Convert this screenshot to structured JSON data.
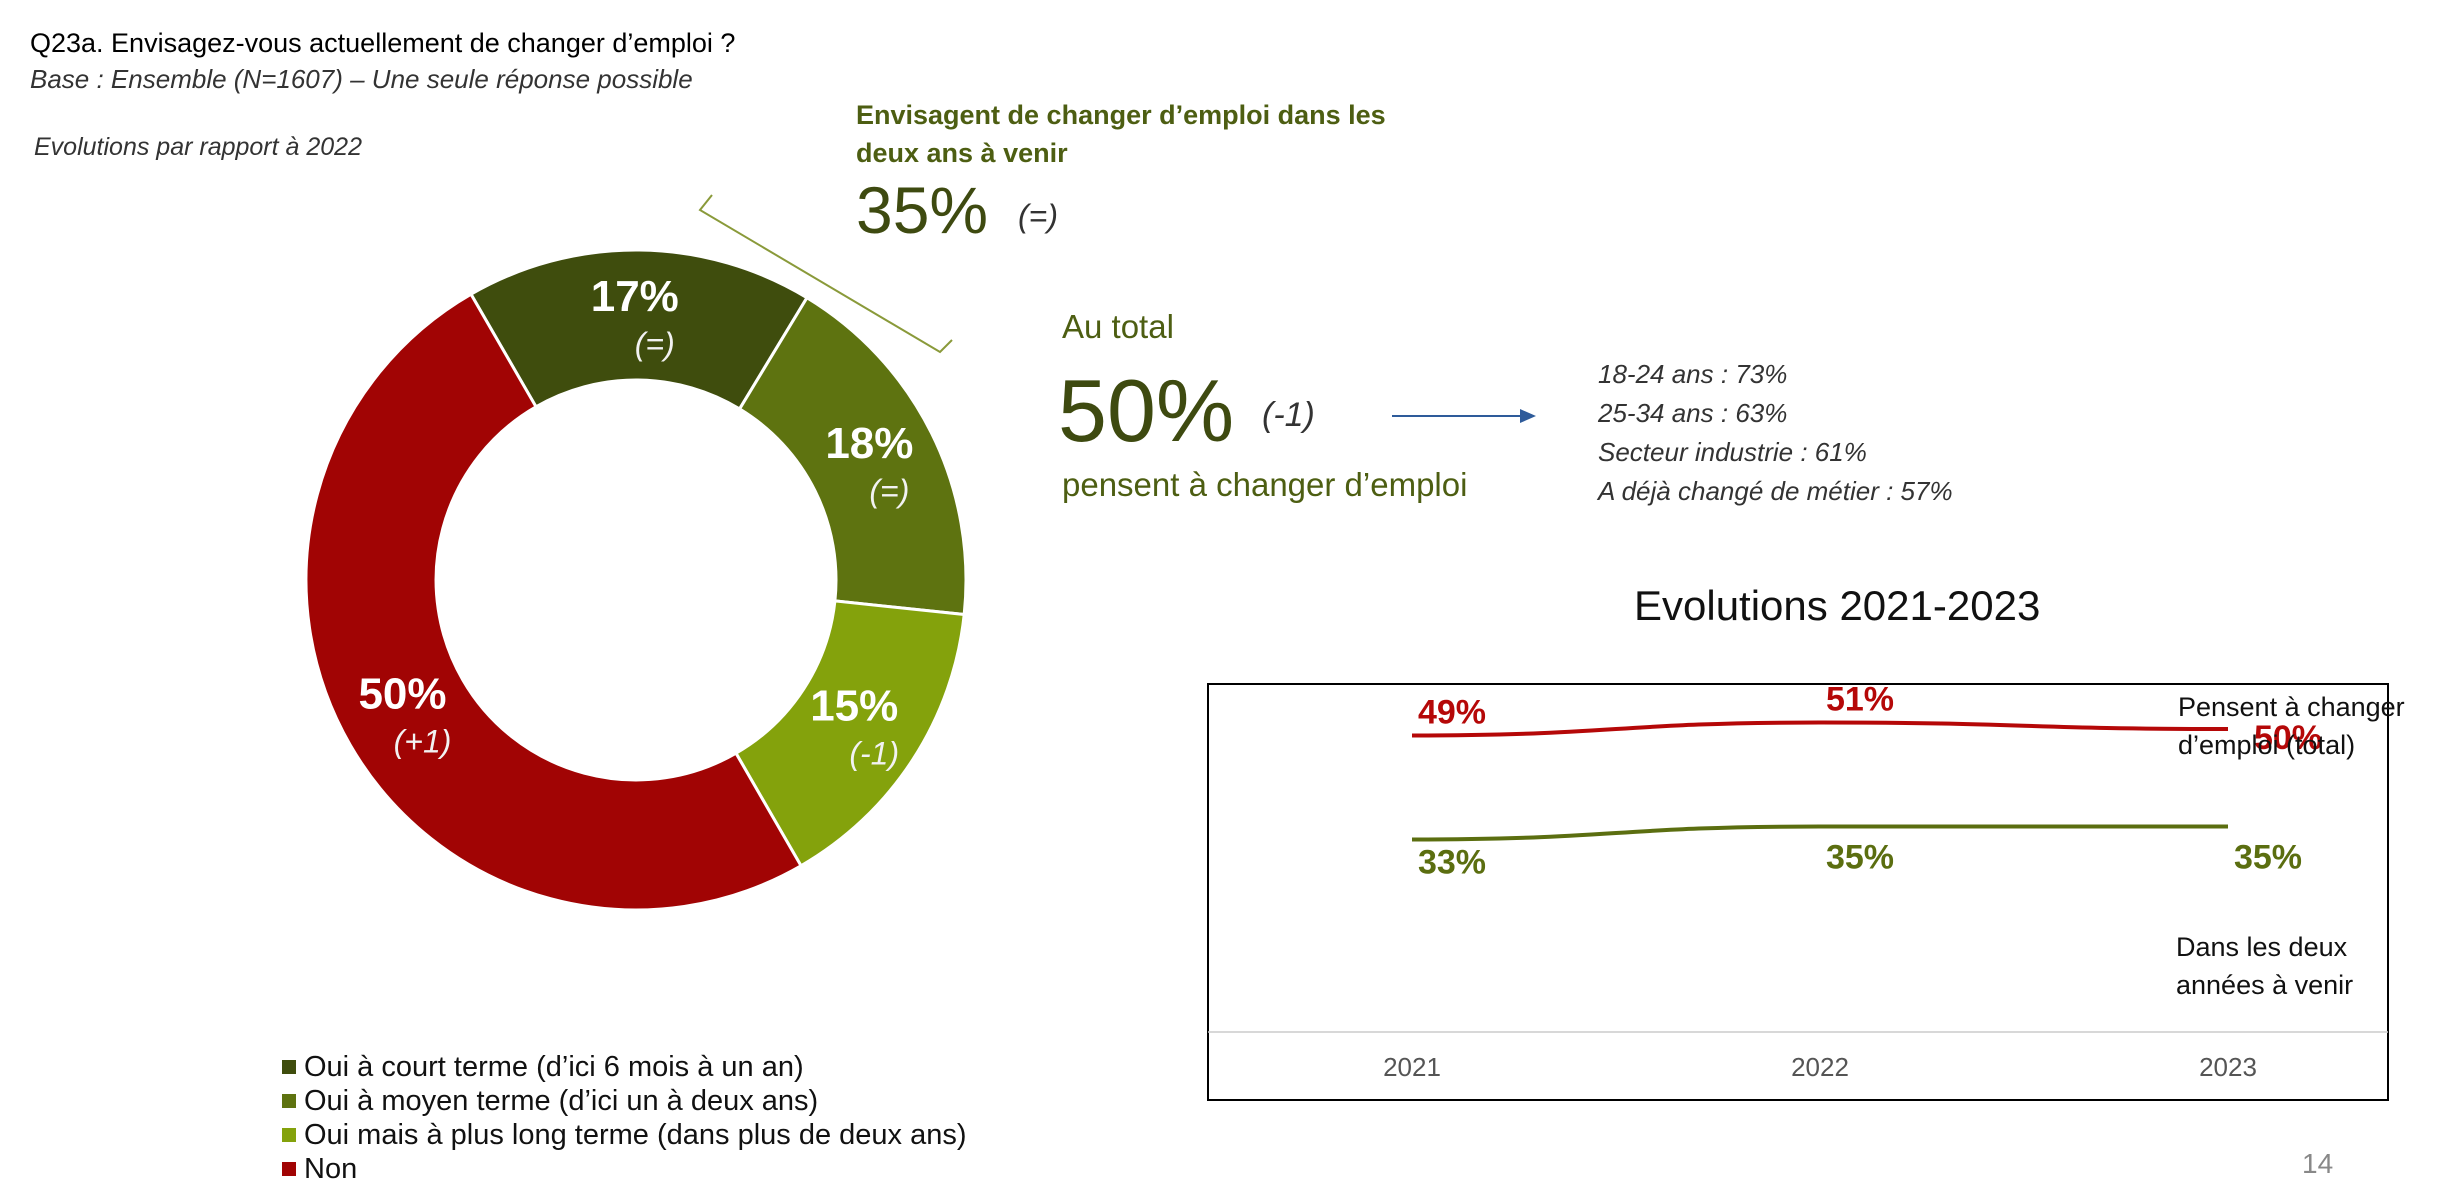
{
  "question": {
    "title": "Q23a. Envisagez-vous actuellement de changer d’emploi ?",
    "base": "Base : Ensemble (N=1607) – Une seule réponse possible",
    "evolutions": "Evolutions par rapport à 2022"
  },
  "colors": {
    "dark_green": "#3f4d0d",
    "mid_green": "#5e7310",
    "light_green": "#84a20c",
    "red": "#a10404",
    "text_green": "#4d5e12"
  },
  "callouts": {
    "two_years_title": "Envisagent de changer d’emploi dans les deux ans à venir",
    "two_years_value": "35%",
    "two_years_change": "(=)",
    "total_label": "Au total",
    "total_value": "50%",
    "total_change": "(-1)",
    "total_sub": "pensent à changer d’emploi"
  },
  "details": [
    "18-24 ans : 73%",
    "25-34 ans : 63%",
    "Secteur industrie : 61%",
    "A déjà changé de métier : 57%"
  ],
  "legend": [
    "Oui à court terme (d’ici 6 mois à un an)",
    "Oui à moyen terme (d’ici un à deux ans)",
    "Oui mais à plus long terme (dans plus de deux ans)",
    "Non"
  ],
  "page_number": "14",
  "chart_data": [
    {
      "type": "pie",
      "subtype": "donut",
      "title": "",
      "categories": [
        "Oui à court terme (d’ici 6 mois à un an)",
        "Oui à moyen terme (d’ici un à deux ans)",
        "Oui mais à plus long terme (dans plus de deux ans)",
        "Non"
      ],
      "values": [
        17,
        18,
        15,
        50
      ],
      "labels": [
        "17%",
        "18%",
        "15%",
        "50%"
      ],
      "changes": [
        "(=)",
        "(=)",
        "(-1)",
        "(+1)"
      ],
      "colors": [
        "#3f4d0d",
        "#5e7310",
        "#84a20c",
        "#a10404"
      ]
    },
    {
      "type": "line",
      "title": "Evolutions 2021-2023",
      "x": [
        "2021",
        "2022",
        "2023"
      ],
      "ylim": [
        0,
        100
      ],
      "series": [
        {
          "name": "Pensent à changer d’emploi (total)",
          "values": [
            49,
            51,
            50
          ],
          "labels": [
            "49%",
            "51%",
            "50%"
          ],
          "color": "#b50808"
        },
        {
          "name": "Dans les deux années à venir",
          "values": [
            33,
            35,
            35
          ],
          "labels": [
            "33%",
            "35%",
            "35%"
          ],
          "color": "#5b6e10"
        }
      ],
      "series_notes": [
        "Pensent à changer",
        "d’emploi (total)",
        "Dans les deux",
        "années à venir"
      ]
    }
  ]
}
